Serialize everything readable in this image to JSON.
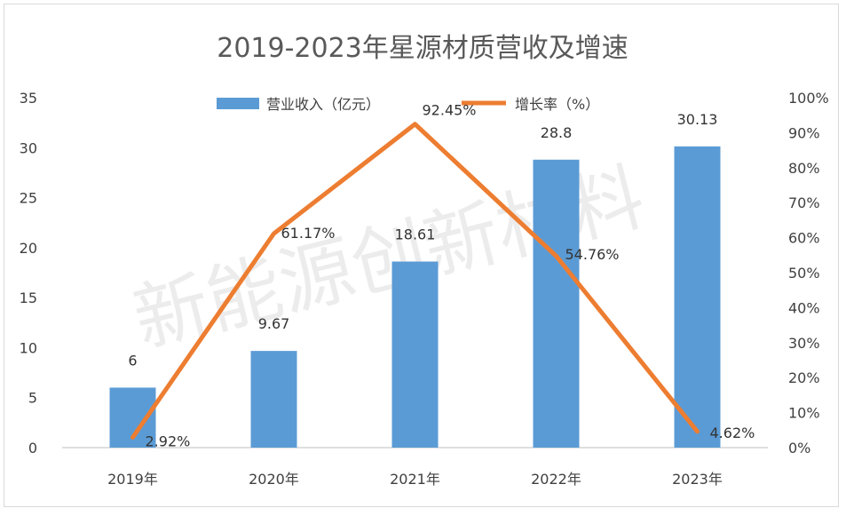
{
  "chart_data": {
    "type": "bar",
    "title": "2019-2023年星源材质营收及增速",
    "categories": [
      "2019年",
      "2020年",
      "2021年",
      "2022年",
      "2023年"
    ],
    "series": [
      {
        "name": "营业收入（亿元）",
        "type": "bar",
        "axis": "left",
        "values": [
          6,
          9.67,
          18.61,
          28.8,
          30.13
        ],
        "labels": [
          "6",
          "9.67",
          "18.61",
          "28.8",
          "30.13"
        ],
        "color": "#5b9bd5"
      },
      {
        "name": "增长率（%）",
        "type": "line",
        "axis": "right",
        "values": [
          2.92,
          61.17,
          92.45,
          54.76,
          4.62
        ],
        "labels": [
          "2.92%",
          "61.17%",
          "92.45%",
          "54.76%",
          "4.62%"
        ],
        "color": "#ed7d31"
      }
    ],
    "y_left": {
      "ylim": [
        0,
        35
      ],
      "ticks": [
        "0",
        "5",
        "10",
        "15",
        "20",
        "25",
        "30",
        "35"
      ]
    },
    "y_right": {
      "ylim": [
        0,
        100
      ],
      "ticks": [
        "0%",
        "10%",
        "20%",
        "30%",
        "40%",
        "50%",
        "60%",
        "70%",
        "80%",
        "90%",
        "100%"
      ]
    },
    "grid": false,
    "legend": "top"
  },
  "watermark": "新能源创新材料"
}
